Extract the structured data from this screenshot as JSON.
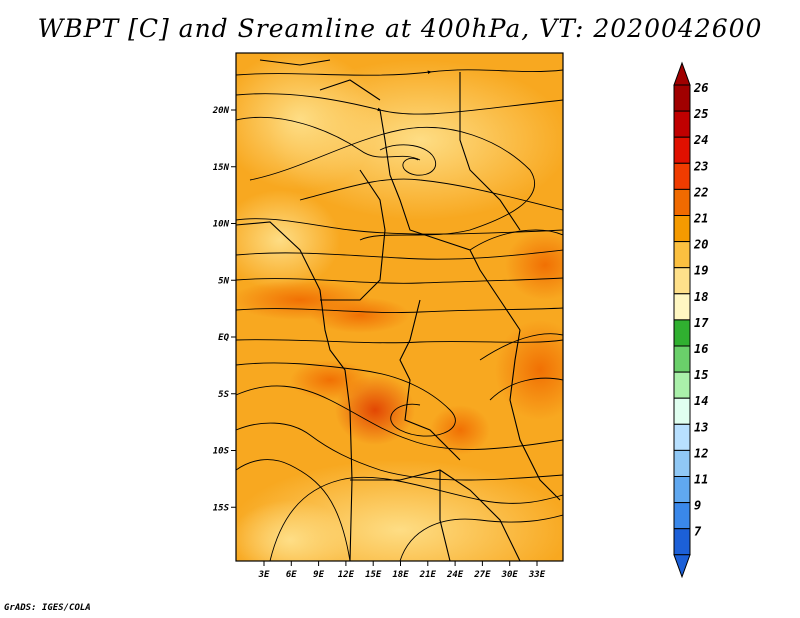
{
  "title": "WBPT [C] and Sreamline at 400hPa, VT: 2020042600",
  "credit": "GrADS: IGES/COLA",
  "map": {
    "lat_ticks": [
      {
        "value": 20,
        "label": "20N"
      },
      {
        "value": 15,
        "label": "15N"
      },
      {
        "value": 10,
        "label": "10N"
      },
      {
        "value": 5,
        "label": "5N"
      },
      {
        "value": 0,
        "label": "EQ"
      },
      {
        "value": -5,
        "label": "5S"
      },
      {
        "value": -10,
        "label": "10S"
      },
      {
        "value": -15,
        "label": "15S"
      }
    ],
    "lon_ticks": [
      {
        "value": 3,
        "label": "3E"
      },
      {
        "value": 6,
        "label": "6E"
      },
      {
        "value": 9,
        "label": "9E"
      },
      {
        "value": 12,
        "label": "12E"
      },
      {
        "value": 15,
        "label": "15E"
      },
      {
        "value": 18,
        "label": "18E"
      },
      {
        "value": 21,
        "label": "21E"
      },
      {
        "value": 24,
        "label": "24E"
      },
      {
        "value": 27,
        "label": "27E"
      },
      {
        "value": 30,
        "label": "30E"
      },
      {
        "value": 33,
        "label": "33E"
      }
    ]
  },
  "colorbar": {
    "levels": [
      {
        "label": "26",
        "color": "#a00000"
      },
      {
        "label": "25",
        "color": "#c00000"
      },
      {
        "label": "24",
        "color": "#e01000"
      },
      {
        "label": "23",
        "color": "#f03c00"
      },
      {
        "label": "22",
        "color": "#f06a00"
      },
      {
        "label": "21",
        "color": "#f59a00"
      },
      {
        "label": "20",
        "color": "#fbc040"
      },
      {
        "label": "19",
        "color": "#fee08a"
      },
      {
        "label": "18",
        "color": "#fff7c2"
      },
      {
        "label": "17",
        "color": "#30b030"
      },
      {
        "label": "16",
        "color": "#6ad06a"
      },
      {
        "label": "15",
        "color": "#aaf0aa"
      },
      {
        "label": "14",
        "color": "#e0fff0"
      },
      {
        "label": "13",
        "color": "#b8e0ff"
      },
      {
        "label": "12",
        "color": "#90c8f5"
      },
      {
        "label": "11",
        "color": "#60a8f0"
      },
      {
        "label": "9",
        "color": "#3a88ea"
      },
      {
        "label": "7",
        "color": "#1c60d8"
      }
    ],
    "top_color": "#a00000",
    "bottom_color": "#1c60d8"
  }
}
